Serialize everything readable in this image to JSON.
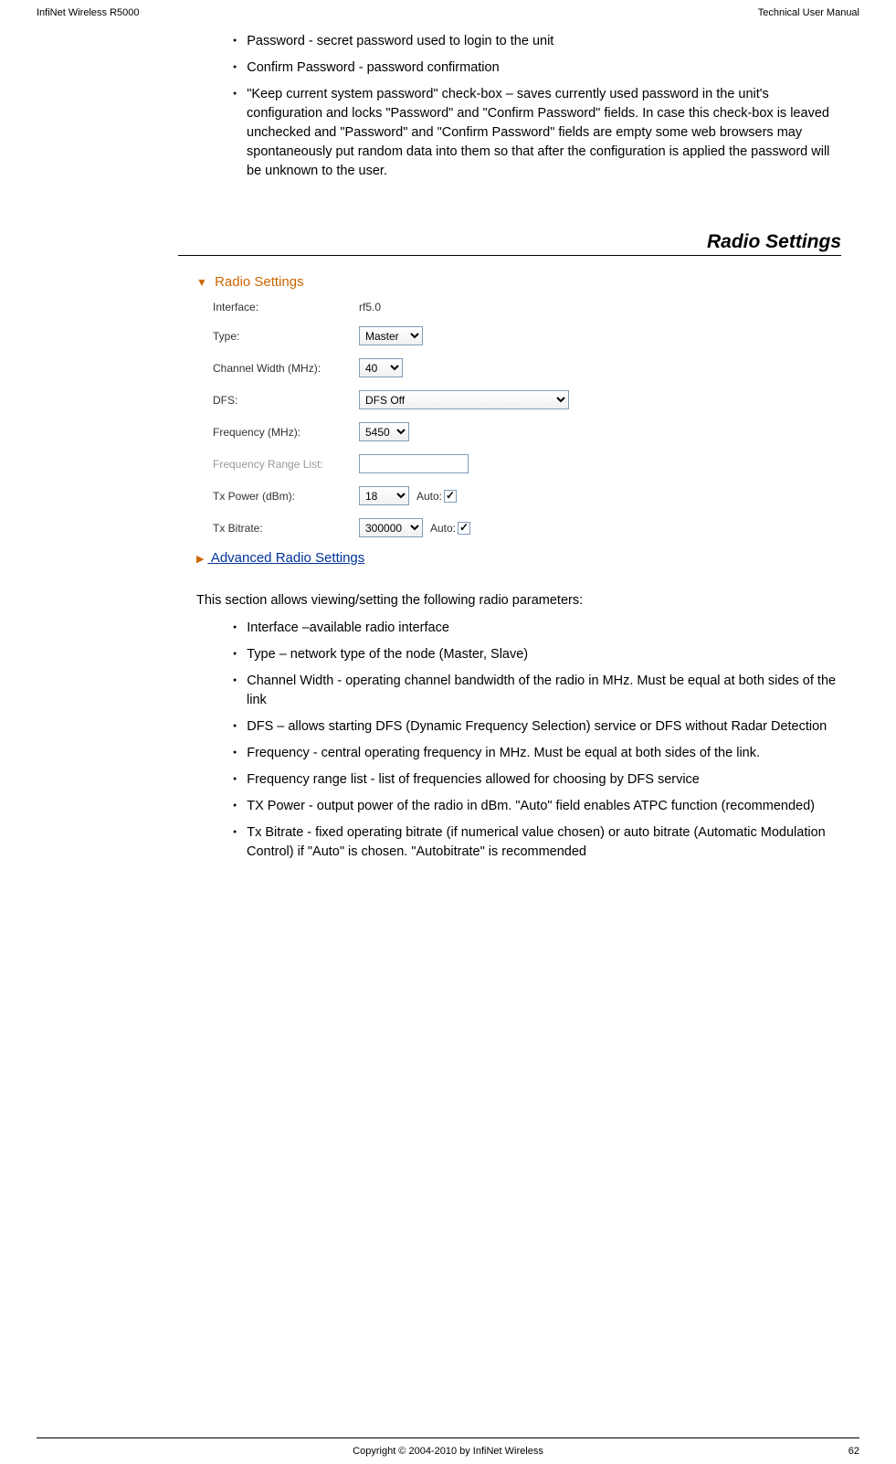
{
  "header": {
    "left": "InfiNet Wireless R5000",
    "right": "Technical User Manual"
  },
  "top_bullets": [
    "Password - secret password used to login to the unit",
    "Confirm Password - password confirmation",
    "\"Keep current system password\" check-box – saves currently used password in the unit's configuration and locks \"Password\" and \"Confirm Password\" fields. In case this check-box is leaved unchecked and \"Password\" and \"Confirm Password\" fields are empty some web browsers may spontaneously put random data into them so that after the configuration is applied the password will be unknown to the user."
  ],
  "section_heading": "Radio Settings",
  "panel": {
    "title": "Radio Settings",
    "interface": {
      "label": "Interface:",
      "value": "rf5.0"
    },
    "type": {
      "label": "Type:",
      "value": "Master"
    },
    "channel_width": {
      "label": "Channel Width (MHz):",
      "value": "40"
    },
    "dfs": {
      "label": "DFS:",
      "value": "DFS Off"
    },
    "frequency": {
      "label": "Frequency (MHz):",
      "value": "5450"
    },
    "freq_range": {
      "label": "Frequency Range List:",
      "value": ""
    },
    "tx_power": {
      "label": "Tx Power (dBm):",
      "value": "18",
      "auto_label": "Auto:"
    },
    "tx_bitrate": {
      "label": "Tx Bitrate:",
      "value": "300000",
      "auto_label": "Auto:"
    },
    "advanced": "Advanced Radio Settings"
  },
  "intro": "This section allows viewing/setting the following radio parameters:",
  "bottom_bullets": [
    "Interface –available radio interface",
    "Type – network type of the node (Master, Slave)",
    "Channel Width - operating channel bandwidth of the radio in MHz. Must be equal at both sides of the link",
    "DFS – allows starting DFS (Dynamic Frequency Selection) service or DFS without Radar Detection",
    "Frequency - central operating frequency in MHz. Must be equal at both sides of the link.",
    "Frequency range list - list of frequencies allowed for choosing by DFS service",
    "TX Power - output power of the radio in dBm. \"Auto\" field enables ATPC function (recommended)",
    "Tx Bitrate - fixed operating bitrate (if numerical value chosen) or auto bitrate (Automatic Modulation Control) if \"Auto\" is chosen. \"Autobitrate\" is recommended"
  ],
  "footer": {
    "center": "Copyright © 2004-2010 by InfiNet Wireless",
    "page": "62"
  },
  "colors": {
    "accent_orange": "#cc6600",
    "link_blue": "#003399",
    "input_border": "#7f9db9",
    "disabled_text": "#999999"
  }
}
